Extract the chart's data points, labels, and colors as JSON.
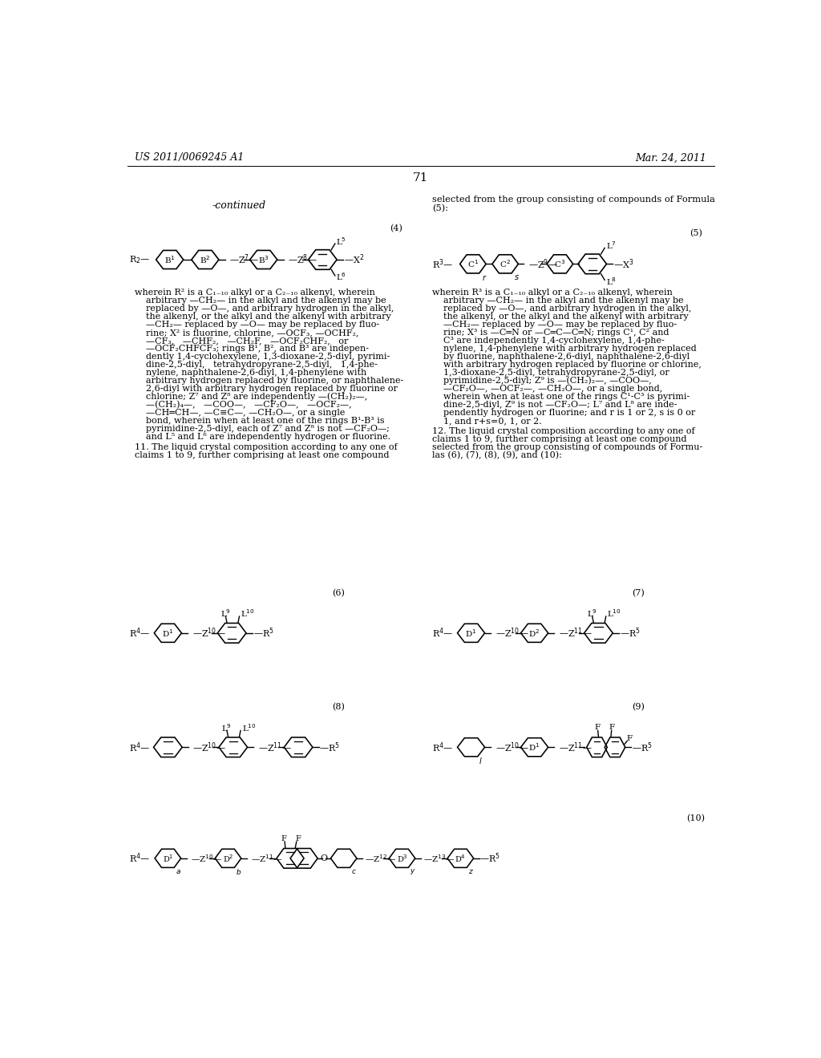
{
  "bg_color": "#ffffff",
  "header_left": "US 2011/0069245 A1",
  "header_right": "Mar. 24, 2011",
  "page_number": "71"
}
